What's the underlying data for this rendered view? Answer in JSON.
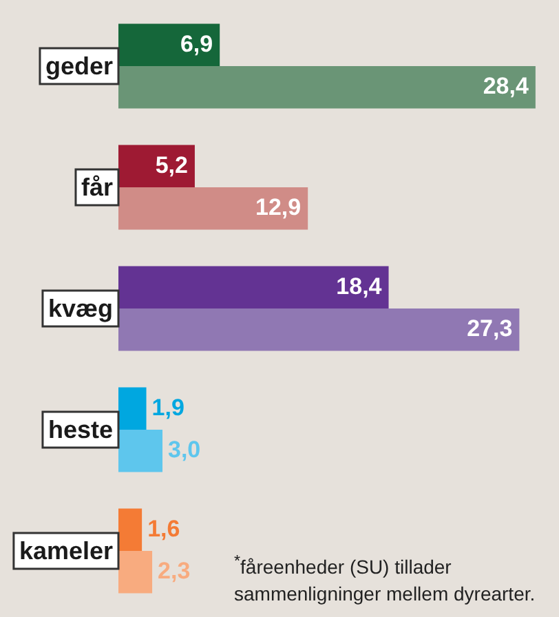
{
  "chart_data": {
    "type": "bar",
    "orientation": "horizontal",
    "categories": [
      "geder",
      "får",
      "kvæg",
      "heste",
      "kameler"
    ],
    "series": [
      {
        "values": [
          6.9,
          5.2,
          18.4,
          1.9,
          1.6
        ],
        "value_labels": [
          "6,9",
          "5,2",
          "18,4",
          "1,9",
          "1,6"
        ],
        "colors": [
          "#15673a",
          "#9e1a33",
          "#633393",
          "#00a7e0",
          "#f47b35"
        ]
      },
      {
        "values": [
          28.4,
          12.9,
          27.3,
          3.0,
          2.3
        ],
        "value_labels": [
          "28,4",
          "12,9",
          "27,3",
          "3,0",
          "2,3"
        ],
        "colors": [
          "#6a9576",
          "#d08c87",
          "#9078b3",
          "#5ec6ed",
          "#f8ab7f"
        ]
      }
    ],
    "legend": false,
    "annotations": [
      "$^{*}$fåreenheder (SU) tillader sammenligninger mellem dyrearter."
    ]
  }
}
